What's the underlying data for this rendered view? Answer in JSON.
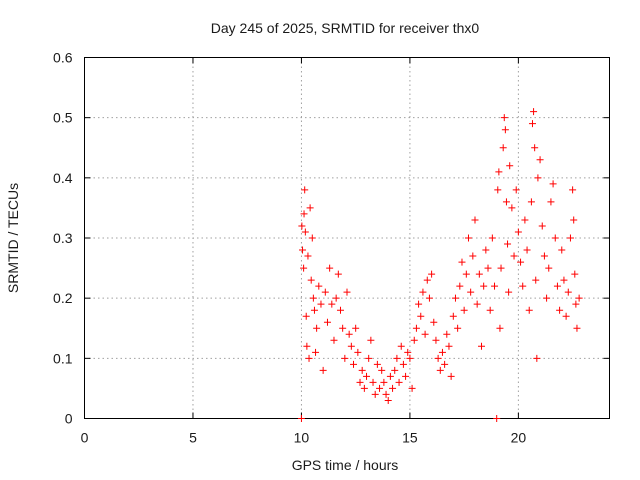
{
  "chart_data": {
    "type": "scatter",
    "title": "Day 245 of 2025, SRMTID for receiver thx0",
    "xlabel": "GPS time / hours",
    "ylabel": "SRMTID / TECUs",
    "xlim": [
      0,
      24.2
    ],
    "ylim": [
      0,
      0.6
    ],
    "x_ticks": [
      0,
      5,
      10,
      15,
      20
    ],
    "x_tick_labels": [
      "0",
      "5",
      "10",
      "15",
      "20"
    ],
    "y_ticks": [
      0,
      0.1,
      0.2,
      0.3,
      0.4,
      0.5,
      0.6
    ],
    "y_tick_labels": [
      "0",
      "0.1",
      "0.2",
      "0.3",
      "0.4",
      "0.5",
      "0.6"
    ],
    "grid": true,
    "marker": "+",
    "color": "#ff0000",
    "series": [
      {
        "name": "SRMTID",
        "points": [
          [
            10.0,
            0.0
          ],
          [
            10.02,
            0.32
          ],
          [
            10.05,
            0.28
          ],
          [
            10.1,
            0.25
          ],
          [
            10.12,
            0.34
          ],
          [
            10.15,
            0.38
          ],
          [
            10.18,
            0.31
          ],
          [
            10.22,
            0.17
          ],
          [
            10.25,
            0.12
          ],
          [
            10.3,
            0.27
          ],
          [
            10.35,
            0.1
          ],
          [
            10.4,
            0.35
          ],
          [
            10.45,
            0.23
          ],
          [
            10.5,
            0.3
          ],
          [
            10.55,
            0.2
          ],
          [
            10.6,
            0.18
          ],
          [
            10.65,
            0.11
          ],
          [
            10.7,
            0.15
          ],
          [
            10.8,
            0.22
          ],
          [
            10.9,
            0.19
          ],
          [
            11.0,
            0.08
          ],
          [
            11.1,
            0.21
          ],
          [
            11.2,
            0.16
          ],
          [
            11.3,
            0.25
          ],
          [
            11.4,
            0.19
          ],
          [
            11.5,
            0.13
          ],
          [
            11.6,
            0.2
          ],
          [
            11.7,
            0.24
          ],
          [
            11.8,
            0.18
          ],
          [
            11.9,
            0.15
          ],
          [
            12.0,
            0.1
          ],
          [
            12.1,
            0.21
          ],
          [
            12.2,
            0.14
          ],
          [
            12.3,
            0.12
          ],
          [
            12.4,
            0.09
          ],
          [
            12.5,
            0.15
          ],
          [
            12.6,
            0.11
          ],
          [
            12.7,
            0.06
          ],
          [
            12.8,
            0.08
          ],
          [
            12.9,
            0.05
          ],
          [
            13.0,
            0.07
          ],
          [
            13.1,
            0.1
          ],
          [
            13.2,
            0.13
          ],
          [
            13.3,
            0.06
          ],
          [
            13.4,
            0.04
          ],
          [
            13.5,
            0.09
          ],
          [
            13.6,
            0.05
          ],
          [
            13.7,
            0.08
          ],
          [
            13.8,
            0.06
          ],
          [
            13.9,
            0.04
          ],
          [
            14.0,
            0.03
          ],
          [
            14.1,
            0.07
          ],
          [
            14.2,
            0.05
          ],
          [
            14.3,
            0.08
          ],
          [
            14.4,
            0.1
          ],
          [
            14.5,
            0.06
          ],
          [
            14.6,
            0.12
          ],
          [
            14.7,
            0.09
          ],
          [
            14.8,
            0.07
          ],
          [
            14.9,
            0.11
          ],
          [
            15.0,
            0.1
          ],
          [
            15.1,
            0.05
          ],
          [
            15.2,
            0.13
          ],
          [
            15.3,
            0.15
          ],
          [
            15.4,
            0.19
          ],
          [
            15.5,
            0.17
          ],
          [
            15.6,
            0.21
          ],
          [
            15.7,
            0.14
          ],
          [
            15.8,
            0.23
          ],
          [
            15.9,
            0.2
          ],
          [
            16.0,
            0.24
          ],
          [
            16.1,
            0.16
          ],
          [
            16.2,
            0.13
          ],
          [
            16.3,
            0.1
          ],
          [
            16.4,
            0.08
          ],
          [
            16.5,
            0.11
          ],
          [
            16.6,
            0.09
          ],
          [
            16.7,
            0.14
          ],
          [
            16.8,
            0.12
          ],
          [
            16.9,
            0.07
          ],
          [
            17.0,
            0.17
          ],
          [
            17.1,
            0.2
          ],
          [
            17.2,
            0.15
          ],
          [
            17.3,
            0.22
          ],
          [
            17.4,
            0.26
          ],
          [
            17.5,
            0.18
          ],
          [
            17.6,
            0.24
          ],
          [
            17.7,
            0.3
          ],
          [
            17.8,
            0.21
          ],
          [
            17.9,
            0.27
          ],
          [
            18.0,
            0.33
          ],
          [
            18.1,
            0.19
          ],
          [
            18.2,
            0.24
          ],
          [
            18.3,
            0.12
          ],
          [
            18.4,
            0.22
          ],
          [
            18.5,
            0.28
          ],
          [
            18.6,
            0.25
          ],
          [
            18.7,
            0.18
          ],
          [
            18.8,
            0.3
          ],
          [
            18.9,
            0.22
          ],
          [
            19.0,
            0.0
          ],
          [
            19.05,
            0.38
          ],
          [
            19.1,
            0.41
          ],
          [
            19.15,
            0.15
          ],
          [
            19.2,
            0.25
          ],
          [
            19.3,
            0.45
          ],
          [
            19.35,
            0.5
          ],
          [
            19.4,
            0.48
          ],
          [
            19.45,
            0.36
          ],
          [
            19.5,
            0.29
          ],
          [
            19.55,
            0.21
          ],
          [
            19.6,
            0.42
          ],
          [
            19.7,
            0.35
          ],
          [
            19.8,
            0.27
          ],
          [
            19.9,
            0.38
          ],
          [
            20.0,
            0.31
          ],
          [
            20.1,
            0.26
          ],
          [
            20.2,
            0.22
          ],
          [
            20.3,
            0.33
          ],
          [
            20.4,
            0.28
          ],
          [
            20.5,
            0.18
          ],
          [
            20.6,
            0.36
          ],
          [
            20.65,
            0.49
          ],
          [
            20.7,
            0.51
          ],
          [
            20.75,
            0.45
          ],
          [
            20.8,
            0.23
          ],
          [
            20.85,
            0.1
          ],
          [
            20.9,
            0.4
          ],
          [
            21.0,
            0.43
          ],
          [
            21.1,
            0.32
          ],
          [
            21.2,
            0.27
          ],
          [
            21.3,
            0.2
          ],
          [
            21.4,
            0.25
          ],
          [
            21.5,
            0.36
          ],
          [
            21.6,
            0.39
          ],
          [
            21.7,
            0.3
          ],
          [
            21.8,
            0.22
          ],
          [
            21.9,
            0.18
          ],
          [
            22.0,
            0.28
          ],
          [
            22.1,
            0.23
          ],
          [
            22.2,
            0.17
          ],
          [
            22.3,
            0.21
          ],
          [
            22.4,
            0.3
          ],
          [
            22.5,
            0.38
          ],
          [
            22.55,
            0.33
          ],
          [
            22.6,
            0.24
          ],
          [
            22.65,
            0.19
          ],
          [
            22.7,
            0.15
          ],
          [
            22.8,
            0.2
          ]
        ]
      }
    ]
  }
}
